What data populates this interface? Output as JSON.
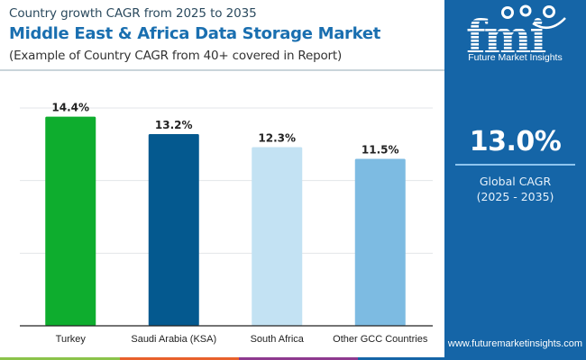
{
  "header": {
    "subtitle": "Country growth CAGR from 2025 to 2035",
    "title": "Middle East & Africa Data Storage Market",
    "note": "(Example of Country CAGR from 40+ covered in Report)"
  },
  "panel": {
    "logo_letters": "fmi",
    "logo_text": "Future Market Insights",
    "global_value": "13.0%",
    "global_label": "Global CAGR",
    "global_period": "(2025 - 2035)",
    "website": "www.futuremarketinsights.com",
    "background_color": "#1565a7"
  },
  "bottom_strip_colors": [
    "#8bc34a",
    "#e8612c",
    "#8e3a8f",
    "#1565a7"
  ],
  "chart_data": {
    "type": "bar",
    "title": "Middle East & Africa Data Storage Market",
    "xlabel": "",
    "ylabel": "",
    "categories": [
      "Turkey",
      "Saudi Arabia (KSA)",
      "South Africa",
      "Other GCC Countries"
    ],
    "values": [
      14.4,
      13.2,
      12.3,
      11.5
    ],
    "value_labels": [
      "14.4%",
      "13.2%",
      "12.3%",
      "11.5%"
    ],
    "colors": [
      "#0ead2e",
      "#04598f",
      "#c3e2f3",
      "#7dbbe2"
    ],
    "ylim": [
      0,
      15
    ],
    "gridlines": [
      5,
      10,
      15
    ],
    "grid": true,
    "legend": "none"
  }
}
